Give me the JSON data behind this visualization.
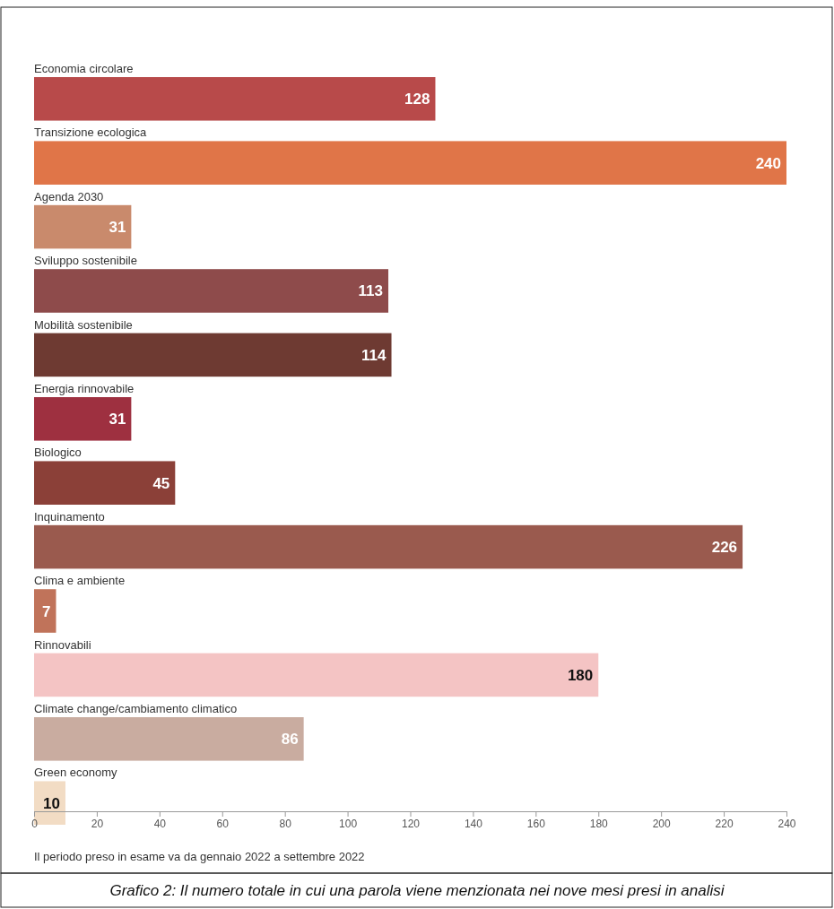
{
  "chart_data": {
    "type": "bar",
    "orientation": "horizontal",
    "categories": [
      "Economia circolare",
      "Transizione ecologica",
      "Agenda 2030",
      "Sviluppo sostenibile",
      "Mobilità sostenibile",
      "Energia rinnovabile",
      "Biologico",
      "Inquinamento",
      "Clima e ambiente",
      "Rinnovabili",
      "Climate change/cambiamento climatico",
      "Green economy"
    ],
    "values": [
      128,
      240,
      31,
      113,
      114,
      31,
      45,
      226,
      7,
      180,
      86,
      10
    ],
    "colors": [
      "#b84a4a",
      "#e07548",
      "#c98a6c",
      "#8e4b4b",
      "#6e3a32",
      "#9e3040",
      "#8b4038",
      "#9a5a4e",
      "#c0735a",
      "#f4c4c4",
      "#c9aca0",
      "#f2dcc4"
    ],
    "data_labels": true,
    "xlim": [
      0,
      240
    ],
    "xticks": [
      0,
      20,
      40,
      60,
      80,
      100,
      120,
      140,
      160,
      180,
      200,
      220,
      240
    ],
    "grid": false,
    "annotations": [
      "Il periodo preso in esame va da gennaio 2022 a settembre 2022",
      "Grafico 2: Il numero totale in cui una parola viene menzionata nei nove mesi presi in analisi"
    ]
  }
}
